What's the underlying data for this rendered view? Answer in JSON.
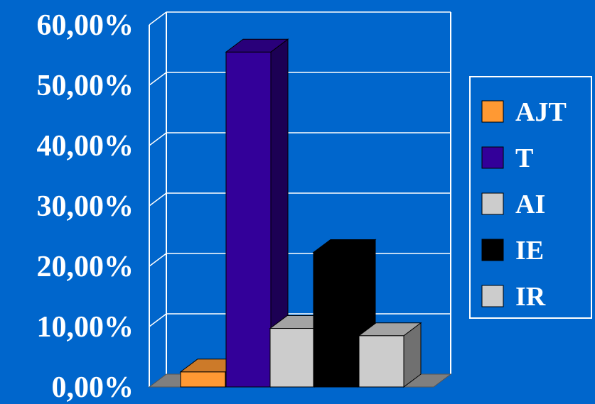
{
  "chart_data": {
    "type": "bar",
    "categories": [
      "AJT",
      "T",
      "AI",
      "IE",
      "IR"
    ],
    "values": [
      2.5,
      55.5,
      9.7,
      22.3,
      8.5
    ],
    "ylim": [
      0,
      60
    ],
    "yticks": [
      "0,00%",
      "10,00%",
      "20,00%",
      "30,00%",
      "40,00%",
      "50,00%",
      "60,00%"
    ],
    "grid": true,
    "legend": "right",
    "series": [
      {
        "name": "AJT",
        "color": "#FF9933"
      },
      {
        "name": "T",
        "color": "#330099"
      },
      {
        "name": "AI",
        "color": "#CCCCCC"
      },
      {
        "name": "IE",
        "color": "#000000"
      },
      {
        "name": "IR",
        "color": "#CCCCCC"
      }
    ],
    "background": "#0066CC"
  }
}
